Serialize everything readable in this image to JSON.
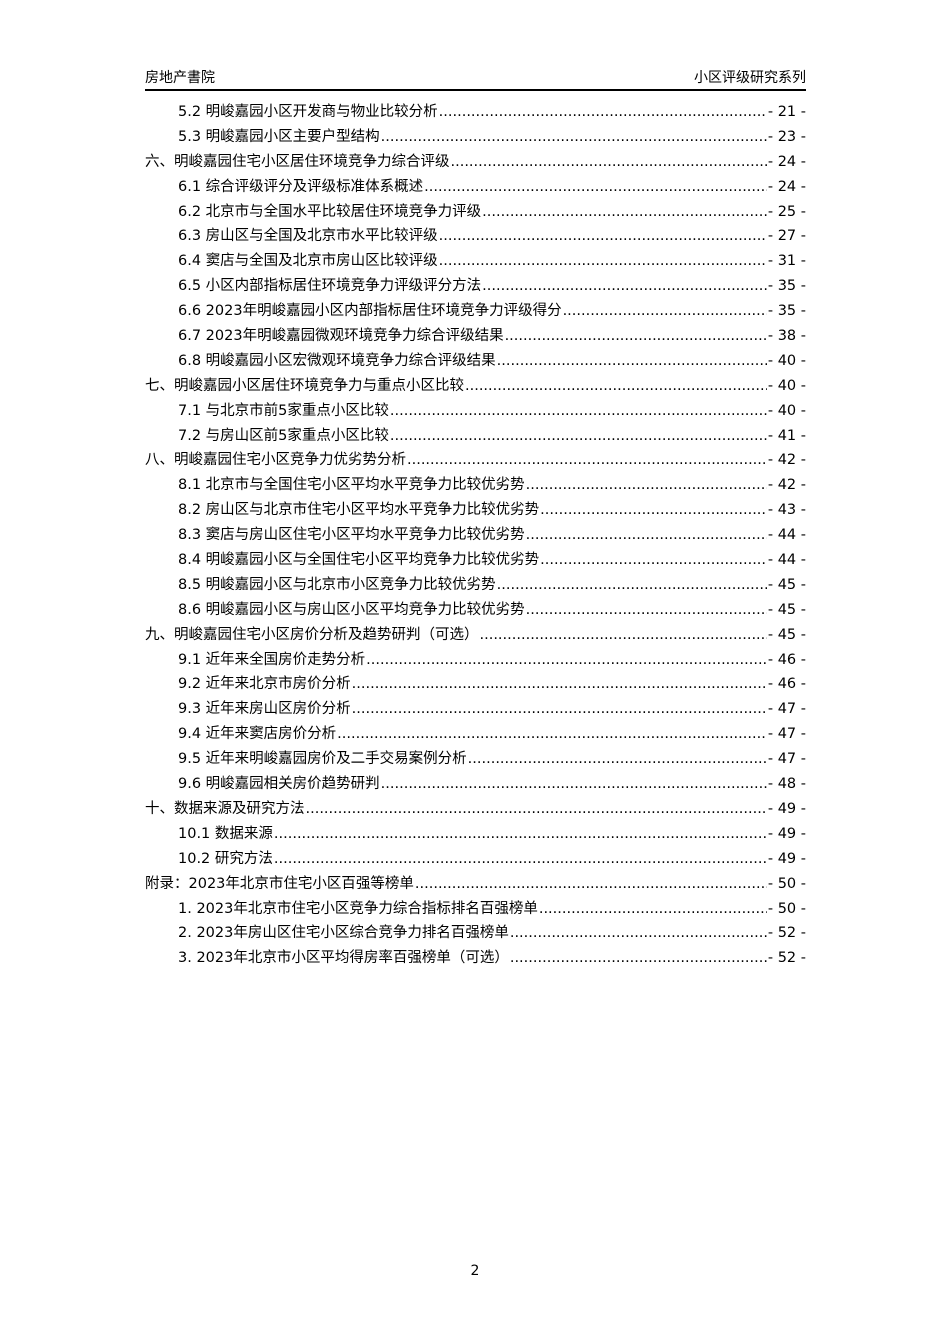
{
  "header": {
    "left": "房地产書院",
    "right": "小区评级研究系列"
  },
  "toc": [
    {
      "level": 2,
      "label": "5.2 明峻嘉园小区开发商与物业比较分析",
      "page": "- 21 -"
    },
    {
      "level": 2,
      "label": "5.3 明峻嘉园小区主要户型结构",
      "page": "- 23 -"
    },
    {
      "level": 1,
      "label": "六、明峻嘉园住宅小区居住环境竞争力综合评级",
      "page": "- 24 -"
    },
    {
      "level": 2,
      "label": "6.1 综合评级评分及评级标准体系概述",
      "page": "- 24 -"
    },
    {
      "level": 2,
      "label": "6.2 北京市与全国水平比较居住环境竞争力评级",
      "page": "- 25 -"
    },
    {
      "level": 2,
      "label": "6.3 房山区与全国及北京市水平比较评级",
      "page": "- 27 -"
    },
    {
      "level": 2,
      "label": "6.4 窦店与全国及北京市房山区比较评级",
      "page": "- 31 -"
    },
    {
      "level": 2,
      "label": "6.5 小区内部指标居住环境竞争力评级评分方法",
      "page": "- 35 -"
    },
    {
      "level": 2,
      "label": "6.6 2023年明峻嘉园小区内部指标居住环境竞争力评级得分",
      "page": "- 35 -"
    },
    {
      "level": 2,
      "label": "6.7 2023年明峻嘉园微观环境竞争力综合评级结果",
      "page": "- 38 -"
    },
    {
      "level": 2,
      "label": "6.8 明峻嘉园小区宏微观环境竞争力综合评级结果",
      "page": "- 40 -"
    },
    {
      "level": 1,
      "label": "七、明峻嘉园小区居住环境竞争力与重点小区比较",
      "page": "- 40 -"
    },
    {
      "level": 2,
      "label": "7.1 与北京市前5家重点小区比较",
      "page": "- 40 -"
    },
    {
      "level": 2,
      "label": "7.2 与房山区前5家重点小区比较",
      "page": "- 41 -"
    },
    {
      "level": 1,
      "label": "八、明峻嘉园住宅小区竞争力优劣势分析",
      "page": "- 42 -"
    },
    {
      "level": 2,
      "label": "8.1 北京市与全国住宅小区平均水平竞争力比较优劣势",
      "page": "- 42 -"
    },
    {
      "level": 2,
      "label": "8.2 房山区与北京市住宅小区平均水平竞争力比较优劣势",
      "page": "- 43 -"
    },
    {
      "level": 2,
      "label": "8.3 窦店与房山区住宅小区平均水平竞争力比较优劣势",
      "page": "- 44 -"
    },
    {
      "level": 2,
      "label": "8.4 明峻嘉园小区与全国住宅小区平均竞争力比较优劣势",
      "page": "- 44 -"
    },
    {
      "level": 2,
      "label": "8.5 明峻嘉园小区与北京市小区竞争力比较优劣势",
      "page": "- 45 -"
    },
    {
      "level": 2,
      "label": "8.6 明峻嘉园小区与房山区小区平均竞争力比较优劣势",
      "page": "- 45 -"
    },
    {
      "level": 1,
      "label": "九、明峻嘉园住宅小区房价分析及趋势研判（可选）",
      "page": "- 45 -"
    },
    {
      "level": 2,
      "label": "9.1 近年来全国房价走势分析",
      "page": "- 46 -"
    },
    {
      "level": 2,
      "label": "9.2 近年来北京市房价分析",
      "page": "- 46 -"
    },
    {
      "level": 2,
      "label": "9.3 近年来房山区房价分析",
      "page": "- 47 -"
    },
    {
      "level": 2,
      "label": "9.4 近年来窦店房价分析",
      "page": "- 47 -"
    },
    {
      "level": 2,
      "label": "9.5 近年来明峻嘉园房价及二手交易案例分析",
      "page": "- 47 -"
    },
    {
      "level": 2,
      "label": "9.6 明峻嘉园相关房价趋势研判",
      "page": "- 48 -"
    },
    {
      "level": 1,
      "label": "十、数据来源及研究方法",
      "page": "- 49 -"
    },
    {
      "level": 2,
      "label": "10.1 数据来源",
      "page": "- 49 -"
    },
    {
      "level": 2,
      "label": "10.2 研究方法",
      "page": "- 49 -"
    },
    {
      "level": 1,
      "label": "附录：2023年北京市住宅小区百强等榜单",
      "page": "- 50 -"
    },
    {
      "level": 2,
      "label": "1. 2023年北京市住宅小区竞争力综合指标排名百强榜单",
      "page": "- 50 -"
    },
    {
      "level": 2,
      "label": "2. 2023年房山区住宅小区综合竞争力排名百强榜单",
      "page": "- 52 -"
    },
    {
      "level": 2,
      "label": "3. 2023年北京市小区平均得房率百强榜单（可选）",
      "page": "- 52 -"
    }
  ],
  "footer": {
    "page_number": "2"
  }
}
